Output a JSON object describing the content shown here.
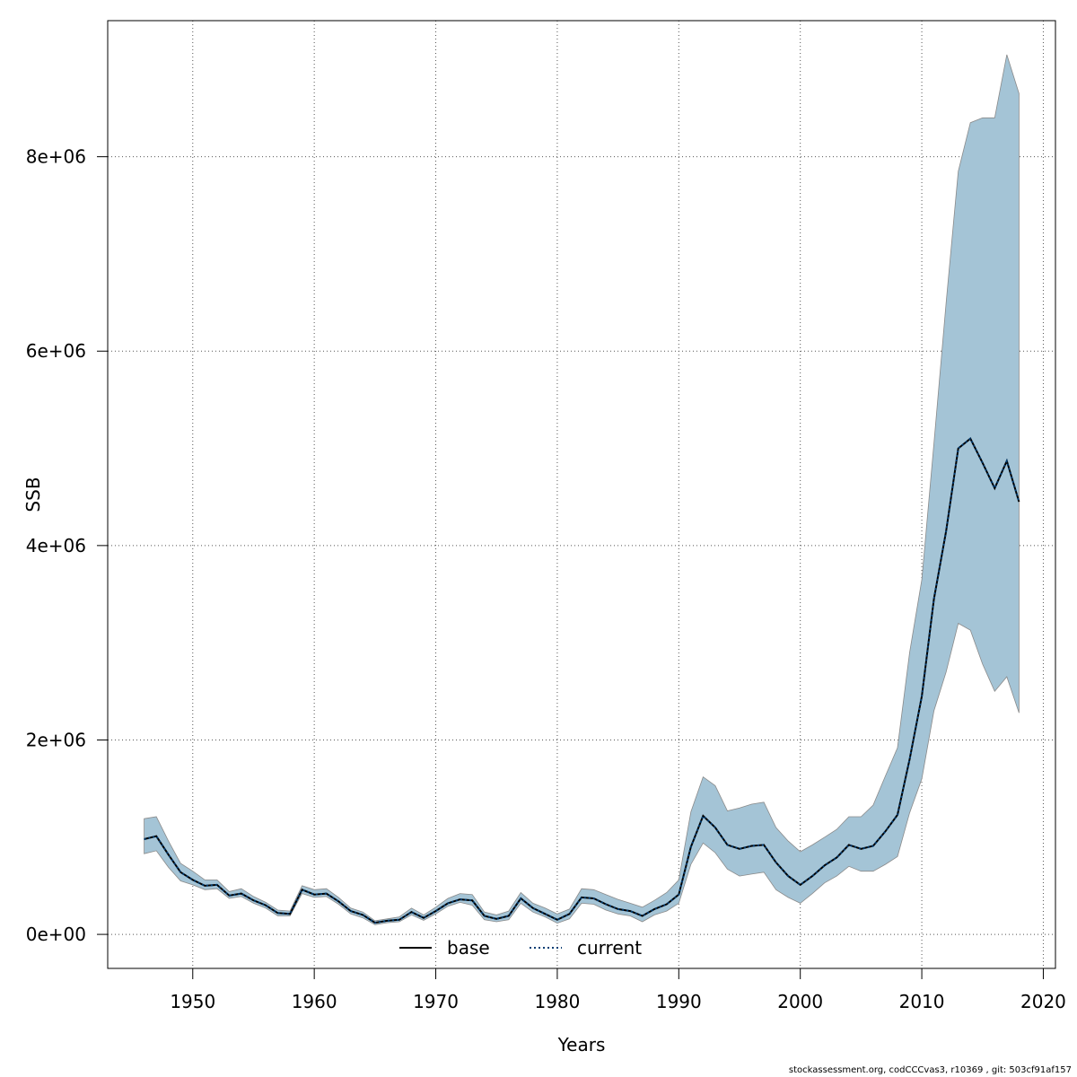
{
  "chart_data": {
    "type": "area",
    "xlabel": "Years",
    "ylabel": "SSB",
    "xlim": [
      1943,
      2021
    ],
    "ylim": [
      -350000,
      9400000
    ],
    "xticks": [
      1950,
      1960,
      1970,
      1980,
      1990,
      2000,
      2010,
      2020
    ],
    "xtick_labels": [
      "1950",
      "1960",
      "1970",
      "1980",
      "1990",
      "2000",
      "2010",
      "2020"
    ],
    "yticks": [
      0,
      2000000,
      4000000,
      6000000,
      8000000
    ],
    "ytick_labels": [
      "0e+00",
      "2e+06",
      "4e+06",
      "6e+06",
      "8e+06"
    ],
    "grid": true,
    "legend_position": "bottom-center",
    "colors": {
      "band": "#a4c4d6",
      "band_edge": "#8a8a8a",
      "current": "#003d73",
      "base": "#000000"
    },
    "x": [
      1946,
      1947,
      1948,
      1949,
      1950,
      1951,
      1952,
      1953,
      1954,
      1955,
      1956,
      1957,
      1958,
      1959,
      1960,
      1961,
      1962,
      1963,
      1964,
      1965,
      1966,
      1967,
      1968,
      1969,
      1970,
      1971,
      1972,
      1973,
      1974,
      1975,
      1976,
      1977,
      1978,
      1979,
      1980,
      1981,
      1982,
      1983,
      1984,
      1985,
      1986,
      1987,
      1988,
      1989,
      1990,
      1991,
      1992,
      1993,
      1994,
      1995,
      1996,
      1997,
      1998,
      1999,
      2000,
      2001,
      2002,
      2003,
      2004,
      2005,
      2006,
      2007,
      2008,
      2009,
      2010,
      2011,
      2012,
      2013,
      2014,
      2015,
      2016,
      2017,
      2018
    ],
    "series": [
      {
        "name": "base",
        "style": "solid",
        "values": [
          980000,
          1010000,
          820000,
          640000,
          560000,
          500000,
          510000,
          400000,
          420000,
          350000,
          300000,
          220000,
          210000,
          460000,
          410000,
          420000,
          340000,
          240000,
          200000,
          120000,
          140000,
          150000,
          230000,
          170000,
          240000,
          320000,
          360000,
          350000,
          190000,
          160000,
          190000,
          370000,
          270000,
          210000,
          150000,
          210000,
          380000,
          370000,
          310000,
          260000,
          240000,
          190000,
          260000,
          310000,
          410000,
          900000,
          1220000,
          1100000,
          920000,
          880000,
          910000,
          920000,
          740000,
          600000,
          510000,
          600000,
          710000,
          790000,
          920000,
          880000,
          910000,
          1060000,
          1230000,
          1800000,
          2450000,
          3450000,
          4150000,
          5000000,
          5100000,
          4850000,
          4590000,
          4870000,
          4450000
        ]
      },
      {
        "name": "current",
        "style": "dotted",
        "values": [
          980000,
          1010000,
          820000,
          640000,
          560000,
          500000,
          510000,
          400000,
          420000,
          350000,
          300000,
          220000,
          210000,
          460000,
          410000,
          420000,
          340000,
          240000,
          200000,
          120000,
          140000,
          150000,
          230000,
          170000,
          240000,
          320000,
          360000,
          350000,
          190000,
          160000,
          190000,
          370000,
          270000,
          210000,
          150000,
          210000,
          380000,
          370000,
          310000,
          260000,
          240000,
          190000,
          260000,
          310000,
          410000,
          900000,
          1220000,
          1100000,
          920000,
          880000,
          910000,
          920000,
          740000,
          600000,
          510000,
          600000,
          710000,
          790000,
          920000,
          880000,
          910000,
          1060000,
          1230000,
          1800000,
          2450000,
          3450000,
          4150000,
          5000000,
          5100000,
          4850000,
          4590000,
          4870000,
          4450000
        ]
      }
    ],
    "band_low": [
      830000,
      860000,
      690000,
      550000,
      510000,
      460000,
      470000,
      370000,
      390000,
      320000,
      270000,
      190000,
      190000,
      420000,
      380000,
      390000,
      310000,
      210000,
      170000,
      100000,
      120000,
      130000,
      200000,
      145000,
      210000,
      290000,
      330000,
      300000,
      150000,
      130000,
      150000,
      320000,
      230000,
      180000,
      115000,
      160000,
      320000,
      310000,
      250000,
      210000,
      190000,
      130000,
      200000,
      240000,
      320000,
      720000,
      940000,
      840000,
      670000,
      600000,
      620000,
      640000,
      460000,
      380000,
      320000,
      420000,
      530000,
      600000,
      700000,
      650000,
      650000,
      720000,
      800000,
      1250000,
      1600000,
      2300000,
      2700000,
      3200000,
      3130000,
      2780000,
      2500000,
      2650000,
      2280000
    ],
    "band_high": [
      1190000,
      1210000,
      960000,
      730000,
      650000,
      560000,
      560000,
      440000,
      470000,
      390000,
      330000,
      250000,
      240000,
      500000,
      460000,
      470000,
      380000,
      270000,
      230000,
      140000,
      160000,
      180000,
      270000,
      200000,
      280000,
      370000,
      420000,
      410000,
      230000,
      200000,
      240000,
      430000,
      320000,
      270000,
      210000,
      260000,
      470000,
      460000,
      410000,
      360000,
      320000,
      280000,
      350000,
      430000,
      560000,
      1260000,
      1620000,
      1530000,
      1270000,
      1300000,
      1340000,
      1360000,
      1100000,
      960000,
      850000,
      920000,
      1000000,
      1080000,
      1210000,
      1210000,
      1330000,
      1630000,
      1920000,
      2900000,
      3650000,
      5050000,
      6500000,
      7850000,
      8350000,
      8400000,
      8400000,
      9050000,
      8650000
    ]
  },
  "footer": "stockassessment.org, codCCCvas3, r10369 , git: 503cf91af157"
}
